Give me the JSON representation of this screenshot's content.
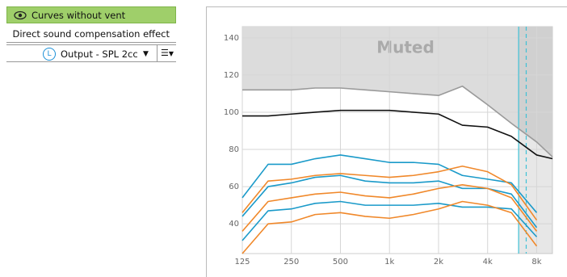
{
  "panel": {
    "buttons": [
      "Curves without vent compensation",
      "Direct sound compensation effect"
    ],
    "output_select": "Output - SPL 2cc",
    "output_icon": "L"
  },
  "chart_data": {
    "type": "line",
    "annotation": "Muted",
    "xscale": "log",
    "grid": true,
    "x": [
      125,
      180,
      250,
      350,
      500,
      710,
      1000,
      1400,
      2000,
      2800,
      4000,
      5600,
      8000,
      10000
    ],
    "xlim": [
      125,
      10000
    ],
    "xticks": [
      125,
      250,
      500,
      {
        "value": 1000,
        "label": "1k"
      },
      {
        "value": 2000,
        "label": "2k"
      },
      {
        "value": 4000,
        "label": "4k"
      },
      {
        "value": 8000,
        "label": "8k"
      }
    ],
    "ylim": [
      24,
      146
    ],
    "yticks": [
      40,
      60,
      80,
      100,
      120,
      140
    ],
    "markers": [
      {
        "x": 6200,
        "style": "solid",
        "color": "#3fc1d6"
      },
      {
        "x": 6900,
        "style": "dashed",
        "color": "#3fc1d6"
      }
    ],
    "shaded_from": 6200,
    "series": [
      {
        "color": "#9a9a9a",
        "values": [
          112,
          112,
          112,
          113,
          113,
          112,
          111,
          110,
          109,
          114,
          104,
          94,
          84,
          76
        ]
      },
      {
        "color": "#111111",
        "values": [
          98,
          98,
          99,
          100,
          101,
          101,
          101,
          100,
          99,
          93,
          92,
          87,
          77,
          75
        ]
      },
      {
        "color": "#1a9ac9",
        "values": [
          54,
          72,
          72,
          75,
          77,
          75,
          73,
          73,
          72,
          66,
          64,
          62,
          46,
          null
        ]
      },
      {
        "color": "#1a9ac9",
        "values": [
          44,
          60,
          62,
          65,
          66,
          63,
          62,
          62,
          63,
          59,
          59,
          56,
          38,
          null
        ]
      },
      {
        "color": "#1a9ac9",
        "values": [
          31,
          47,
          48,
          51,
          52,
          50,
          50,
          50,
          51,
          49,
          49,
          48,
          33,
          null
        ]
      },
      {
        "color": "#f0882a",
        "values": [
          46,
          63,
          64,
          66,
          67,
          66,
          65,
          66,
          68,
          71,
          68,
          61,
          42,
          null
        ]
      },
      {
        "color": "#f0882a",
        "values": [
          36,
          52,
          54,
          56,
          57,
          55,
          54,
          56,
          59,
          61,
          59,
          54,
          36,
          null
        ]
      },
      {
        "color": "#f0882a",
        "values": [
          24,
          40,
          41,
          45,
          46,
          44,
          43,
          45,
          48,
          52,
          50,
          46,
          28,
          null
        ]
      }
    ]
  }
}
